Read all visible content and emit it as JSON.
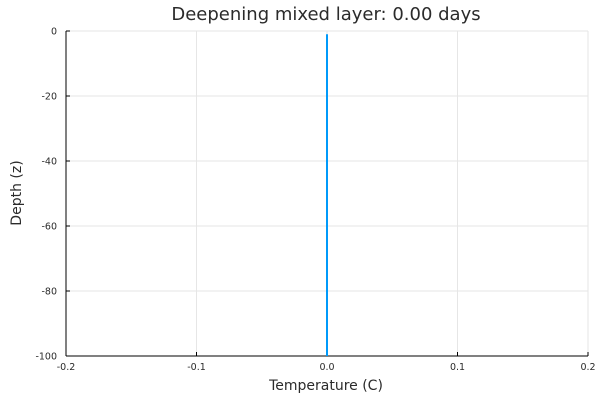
{
  "chart_data": {
    "type": "line",
    "title": "Deepening mixed layer: 0.00 days",
    "xlabel": "Temperature (C)",
    "ylabel": "Depth (z)",
    "xlim": [
      -0.2,
      0.2
    ],
    "ylim": [
      -100,
      0
    ],
    "xticks": [
      -0.2,
      -0.1,
      0.0,
      0.1,
      0.2
    ],
    "xtick_labels": [
      "-0.2",
      "-0.1",
      "0.0",
      "0.1",
      "0.2"
    ],
    "yticks": [
      0,
      -20,
      -40,
      -60,
      -80,
      -100
    ],
    "ytick_labels": [
      "0",
      "-20",
      "-40",
      "-60",
      "-80",
      "-100"
    ],
    "grid": true,
    "legend": false,
    "series": [
      {
        "color": "#009AFA",
        "x": [
          0.0,
          0.0
        ],
        "y": [
          -100,
          -1
        ]
      }
    ]
  }
}
